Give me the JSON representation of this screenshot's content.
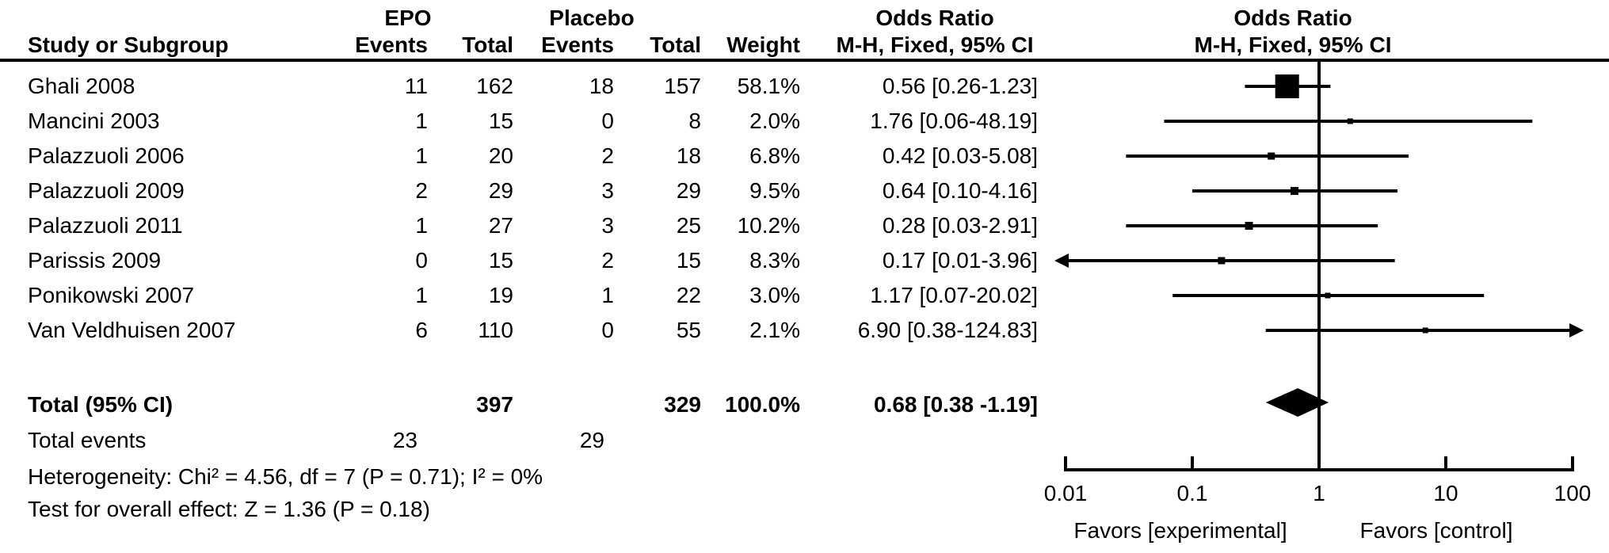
{
  "colors": {
    "foreground": "#000000",
    "background": "#ffffff"
  },
  "table": {
    "group_headers": {
      "epo": "EPO",
      "placebo": "Placebo"
    },
    "col_headers": {
      "study": "Study or Subgroup",
      "events": "Events",
      "total": "Total",
      "events2": "Events",
      "total2": "Total",
      "weight": "Weight"
    },
    "or_text_header": {
      "line1": "Odds Ratio",
      "line2": "M-H, Fixed, 95% CI"
    },
    "or_plot_header": {
      "line1": "Odds Ratio",
      "line2": "M-H, Fixed, 95% CI"
    },
    "studies": [
      {
        "name": "Ghali 2008",
        "epo_events": "11",
        "epo_total": "162",
        "placebo_events": "18",
        "placebo_total": "157",
        "weight": "58.1%",
        "or_text": "0.56 [0.26-1.23]"
      },
      {
        "name": "Mancini 2003",
        "epo_events": "1",
        "epo_total": "15",
        "placebo_events": "0",
        "placebo_total": "8",
        "weight": "2.0%",
        "or_text": "1.76 [0.06-48.19]"
      },
      {
        "name": "Palazzuoli 2006",
        "epo_events": "1",
        "epo_total": "20",
        "placebo_events": "2",
        "placebo_total": "18",
        "weight": "6.8%",
        "or_text": "0.42 [0.03-5.08]"
      },
      {
        "name": "Palazzuoli 2009",
        "epo_events": "2",
        "epo_total": "29",
        "placebo_events": "3",
        "placebo_total": "29",
        "weight": "9.5%",
        "or_text": "0.64 [0.10-4.16]"
      },
      {
        "name": "Palazzuoli 2011",
        "epo_events": "1",
        "epo_total": "27",
        "placebo_events": "3",
        "placebo_total": "25",
        "weight": "10.2%",
        "or_text": "0.28 [0.03-2.91]"
      },
      {
        "name": "Parissis 2009",
        "epo_events": "0",
        "epo_total": "15",
        "placebo_events": "2",
        "placebo_total": "15",
        "weight": "8.3%",
        "or_text": "0.17 [0.01-3.96]"
      },
      {
        "name": "Ponikowski 2007",
        "epo_events": "1",
        "epo_total": "19",
        "placebo_events": "1",
        "placebo_total": "22",
        "weight": "3.0%",
        "or_text": "1.17 [0.07-20.02]"
      },
      {
        "name": "Van Veldhuisen 2007",
        "epo_events": "6",
        "epo_total": "110",
        "placebo_events": "0",
        "placebo_total": "55",
        "weight": "2.1%",
        "or_text": "6.90 [0.38-124.83]"
      }
    ],
    "total_row": {
      "label": "Total (95% CI)",
      "epo_total": "397",
      "placebo_total": "329",
      "weight": "100.0%",
      "or_text": "0.68 [0.38 -1.19]"
    },
    "total_events": {
      "label": "Total events",
      "epo": "23",
      "placebo": "29"
    },
    "heterogeneity": "Heterogeneity: Chi² = 4.56, df = 7 (P = 0.71); I² = 0%",
    "overall_effect": "Test for overall effect: Z = 1.36 (P = 0.18)"
  },
  "chart_data": {
    "type": "scatter",
    "subtype": "forest-plot",
    "title": "Odds Ratio",
    "xlabel": "M-H, Fixed, 95% CI",
    "x_scale": "log",
    "xlim": [
      0.01,
      100
    ],
    "x_ticks": [
      "0.01",
      "0.1",
      "1",
      "10",
      "100"
    ],
    "x_tick_values": [
      0.01,
      0.1,
      1,
      10,
      100
    ],
    "null_line_x": 1,
    "favors_left": "Favors [experimental]",
    "favors_right": "Favors [control]",
    "points": [
      {
        "name": "Ghali 2008",
        "or": 0.56,
        "low": 0.26,
        "high": 1.23,
        "weight_pct": 58.1
      },
      {
        "name": "Mancini 2003",
        "or": 1.76,
        "low": 0.06,
        "high": 48.19,
        "weight_pct": 2.0
      },
      {
        "name": "Palazzuoli 2006",
        "or": 0.42,
        "low": 0.03,
        "high": 5.08,
        "weight_pct": 6.8
      },
      {
        "name": "Palazzuoli 2009",
        "or": 0.64,
        "low": 0.1,
        "high": 4.16,
        "weight_pct": 9.5
      },
      {
        "name": "Palazzuoli 2011",
        "or": 0.28,
        "low": 0.03,
        "high": 2.91,
        "weight_pct": 10.2
      },
      {
        "name": "Parissis 2009",
        "or": 0.17,
        "low": 0.01,
        "high": 3.96,
        "weight_pct": 8.3
      },
      {
        "name": "Ponikowski 2007",
        "or": 1.17,
        "low": 0.07,
        "high": 20.02,
        "weight_pct": 3.0
      },
      {
        "name": "Van Veldhuisen 2007",
        "or": 6.9,
        "low": 0.38,
        "high": 124.83,
        "weight_pct": 2.1
      }
    ],
    "summary": {
      "name": "Total (95% CI)",
      "or": 0.68,
      "low": 0.38,
      "high": 1.19,
      "shape": "diamond"
    }
  }
}
